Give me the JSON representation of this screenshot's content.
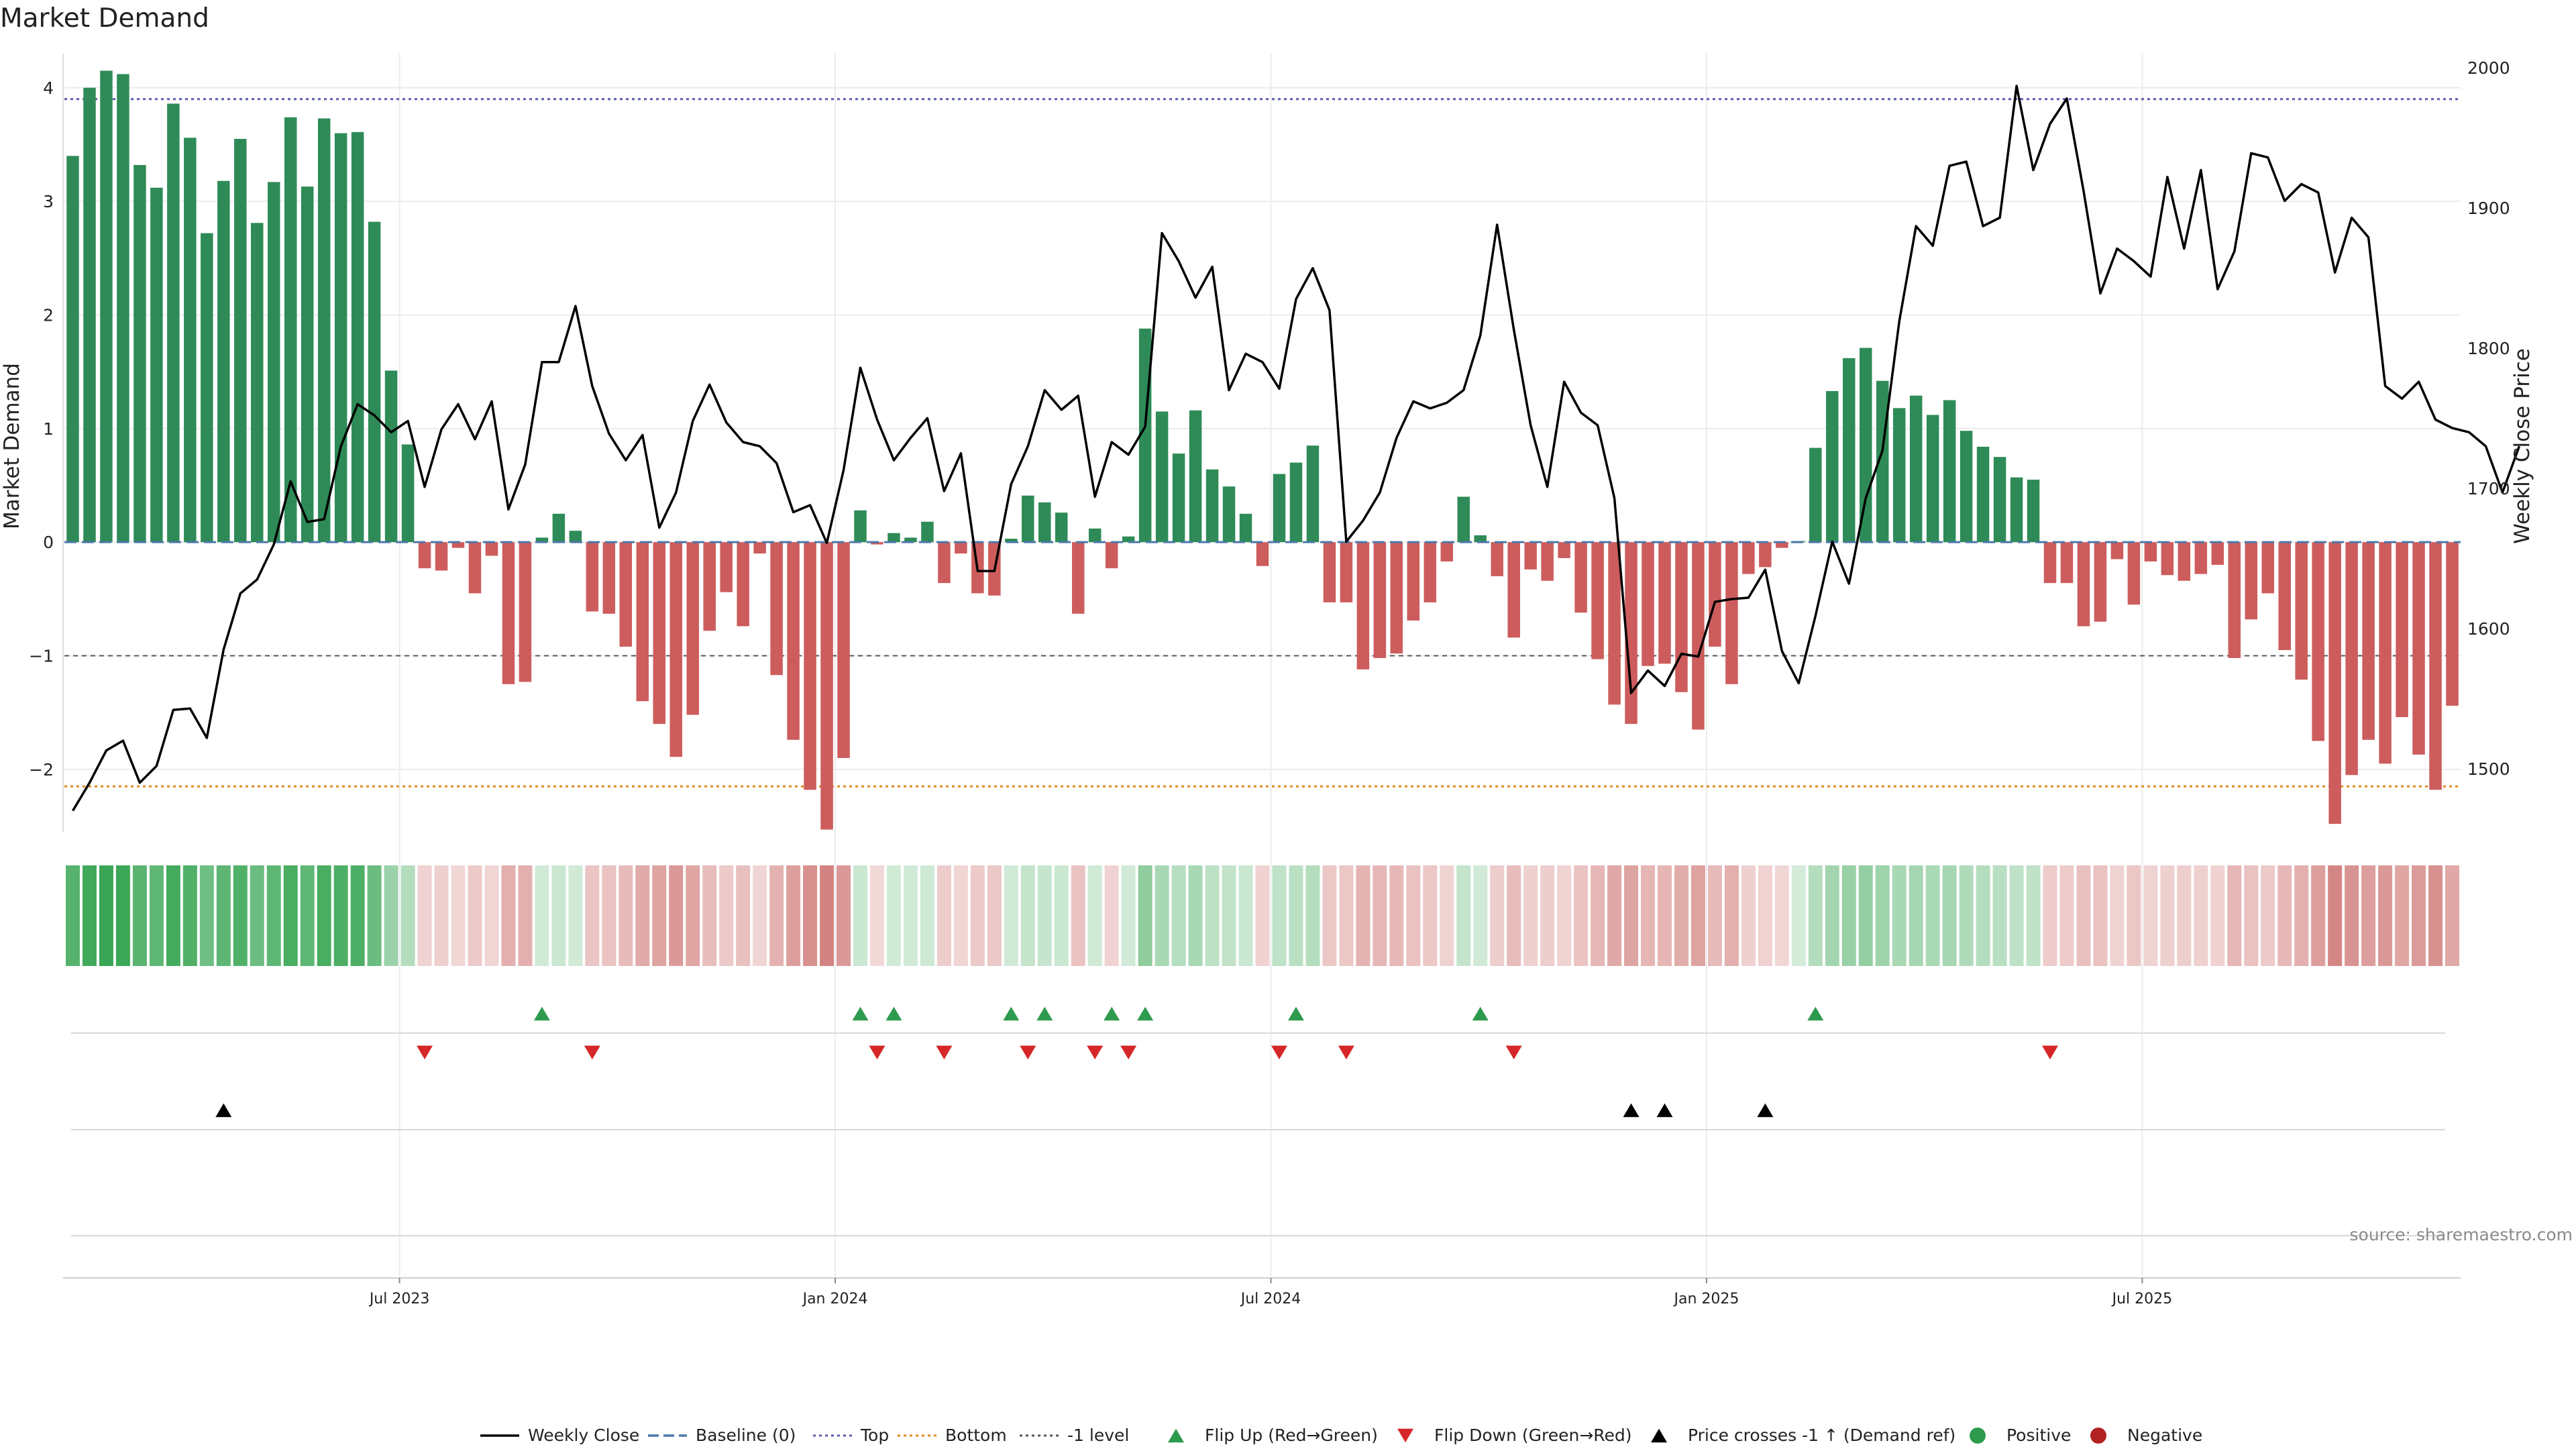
{
  "chart_data": {
    "type": "bar",
    "title": "Market Demand",
    "ylabel": "Market Demand",
    "y2label": "Weekly Close Price",
    "ylim": [
      -2.55,
      4.3
    ],
    "y2lim": [
      1455,
      2010
    ],
    "yticks": [
      "−2",
      "−1",
      "0",
      "1",
      "2",
      "3",
      "4"
    ],
    "y2ticks": [
      "1500",
      "1600",
      "1700",
      "1800",
      "1900",
      "2000"
    ],
    "yticks_values": [
      -2,
      -1,
      0,
      1,
      2,
      3,
      4
    ],
    "y2ticks_values": [
      1500,
      1600,
      1700,
      1800,
      1900,
      2000
    ],
    "xticks": [
      "Jul 2023",
      "Jan 2024",
      "Jul 2024",
      "Jan 2025",
      "Jul 2025"
    ],
    "xticks_week_index": [
      20,
      46,
      72,
      98,
      124
    ],
    "reference_lines": {
      "top": 3.9,
      "bottom": -2.15,
      "minus_one": -1,
      "baseline": 0
    },
    "demand": [
      3.4,
      4.0,
      4.15,
      4.12,
      3.32,
      3.12,
      3.86,
      3.56,
      2.72,
      3.18,
      3.55,
      2.81,
      3.17,
      3.74,
      3.13,
      3.73,
      3.6,
      3.61,
      2.82,
      1.51,
      0.86,
      -0.23,
      -0.25,
      -0.05,
      -0.45,
      -0.12,
      -1.25,
      -1.23,
      0.04,
      0.25,
      0.1,
      -0.61,
      -0.63,
      -0.92,
      -1.4,
      -1.6,
      -1.89,
      -1.52,
      -0.78,
      -0.44,
      -0.74,
      -0.1,
      -1.17,
      -1.74,
      -2.18,
      -2.53,
      -1.9,
      0.28,
      -0.02,
      0.08,
      0.04,
      0.18,
      -0.36,
      -0.1,
      -0.45,
      -0.47,
      0.03,
      0.41,
      0.35,
      0.26,
      -0.63,
      0.12,
      -0.23,
      0.05,
      1.88,
      1.15,
      0.78,
      1.16,
      0.64,
      0.49,
      0.25,
      -0.21,
      0.6,
      0.7,
      0.85,
      -0.53,
      -0.53,
      -1.12,
      -1.02,
      -0.98,
      -0.69,
      -0.53,
      -0.17,
      0.4,
      0.06,
      -0.3,
      -0.84,
      -0.24,
      -0.34,
      -0.14,
      -0.62,
      -1.03,
      -1.43,
      -1.6,
      -1.09,
      -1.07,
      -1.32,
      -1.65,
      -0.92,
      -1.25,
      -0.28,
      -0.22,
      -0.05,
      0.01,
      0.83,
      1.33,
      1.62,
      1.71,
      1.42,
      1.18,
      1.29,
      1.12,
      1.25,
      0.98,
      0.84,
      0.75,
      0.57,
      0.55,
      -0.36,
      -0.36,
      -0.74,
      -0.7,
      -0.15,
      -0.55,
      -0.17,
      -0.29,
      -0.34,
      -0.28,
      -0.2,
      -1.02,
      -0.68,
      -0.45,
      -0.95,
      -1.21,
      -1.75,
      -2.48,
      -2.05,
      -1.74,
      -1.95,
      -1.54,
      -1.87,
      -2.18,
      -1.44
    ],
    "weekly_close": [
      1470,
      1490,
      1513,
      1520,
      1490,
      1502,
      1542,
      1543,
      1522,
      1585,
      1625,
      1635,
      1660,
      1705,
      1676,
      1678,
      1730,
      1760,
      1752,
      1740,
      1748,
      1701,
      1742,
      1760,
      1735,
      1762,
      1685,
      1717,
      1790,
      1790,
      1830,
      1773,
      1739,
      1720,
      1738,
      1672,
      1697,
      1748,
      1774,
      1747,
      1733,
      1730,
      1718,
      1683,
      1688,
      1661,
      1713,
      1786,
      1749,
      1720,
      1736,
      1750,
      1698,
      1725,
      1641,
      1641,
      1703,
      1730,
      1770,
      1756,
      1766,
      1694,
      1733,
      1724,
      1744,
      1882,
      1862,
      1836,
      1858,
      1770,
      1796,
      1790,
      1771,
      1835,
      1857,
      1827,
      1662,
      1677,
      1697,
      1736,
      1762,
      1757,
      1761,
      1770,
      1809,
      1888,
      1813,
      1745,
      1701,
      1776,
      1754,
      1745,
      1693,
      1554,
      1570,
      1559,
      1582,
      1580,
      1619,
      1621,
      1622,
      1642,
      1584,
      1561,
      1609,
      1662,
      1632,
      1693,
      1727,
      1819,
      1887,
      1873,
      1930,
      1933,
      1887,
      1893,
      1987,
      1927,
      1960,
      1978,
      1912,
      1839,
      1871,
      1862,
      1851,
      1922,
      1871,
      1927,
      1842,
      1869,
      1939,
      1936,
      1905,
      1917,
      1911,
      1854,
      1893,
      1879,
      1773,
      1764,
      1776,
      1749,
      1743,
      1740,
      1730,
      1697,
      1730
    ],
    "flip_up_weeks": [
      28,
      47,
      49,
      56,
      58,
      62,
      64,
      73,
      84,
      104
    ],
    "flip_down_weeks": [
      21,
      31,
      48,
      52,
      57,
      61,
      63,
      72,
      76,
      86,
      118
    ],
    "price_cross_weeks": [
      9,
      93,
      95,
      101
    ],
    "legend": [
      {
        "label": "Weekly Close",
        "style": "line",
        "color": "#000000"
      },
      {
        "label": "Baseline (0)",
        "style": "dash",
        "color": "#4c78a8"
      },
      {
        "label": "Top",
        "style": "dot",
        "color": "#5b5bb0"
      },
      {
        "label": "Bottom",
        "style": "dot",
        "color": "#e08a1e"
      },
      {
        "label": "-1 level",
        "style": "dot",
        "color": "#555555"
      },
      {
        "label": "Flip Up (Red→Green)",
        "style": "tri-up",
        "color": "#2e9a4e"
      },
      {
        "label": "Flip Down (Green→Red)",
        "style": "tri-down",
        "color": "#d62728"
      },
      {
        "label": "Price crosses -1 ↑ (Demand ref)",
        "style": "tri-up",
        "color": "#000000"
      },
      {
        "label": "Positive",
        "style": "circle",
        "color": "#2e9a4e"
      },
      {
        "label": "Negative",
        "style": "circle",
        "color": "#b22222"
      }
    ],
    "source_note": "source: sharemaestro.com",
    "colors": {
      "positive": "#2e8b57",
      "negative": "#cd5c5c",
      "heat_positive": "#3aa655",
      "heat_negative": "#c0504d"
    }
  }
}
